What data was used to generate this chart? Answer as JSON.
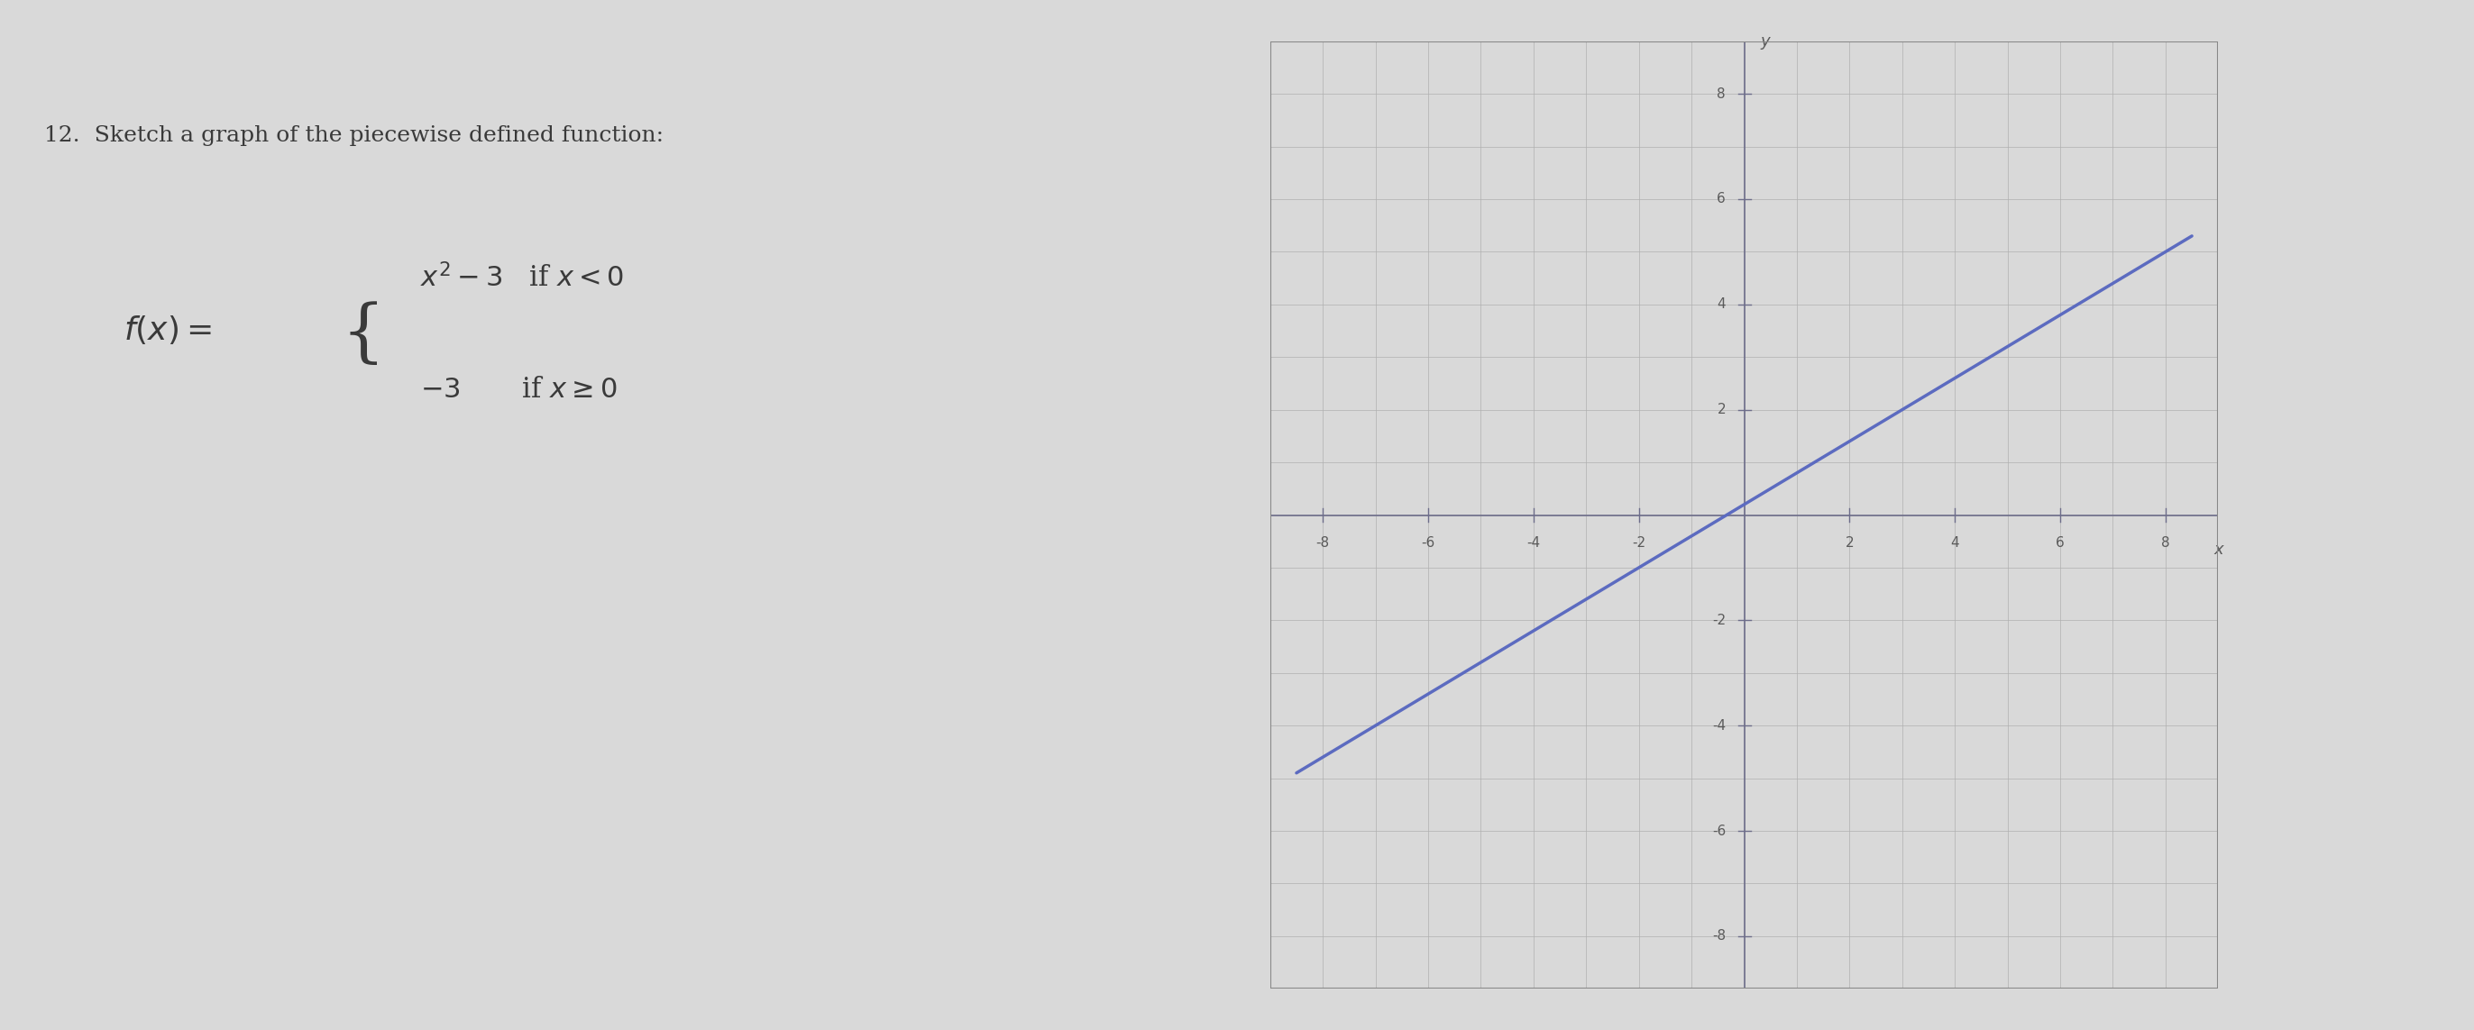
{
  "title": "12.  Sketch a graph of the piecewise defined function:",
  "formula_line1": "f(x) = { x² − 3   if x < 0",
  "formula_line2": "         {  −3      if x ≥ 0",
  "xlim": [
    -9,
    9
  ],
  "ylim": [
    -9,
    9
  ],
  "xticks": [
    -8,
    -6,
    -4,
    -2,
    2,
    4,
    6,
    8
  ],
  "yticks": [
    -8,
    -6,
    -4,
    -2,
    2,
    4,
    6,
    8
  ],
  "background_color": "#d9d9d9",
  "grid_color": "#b0b0b0",
  "axis_color": "#6d6d8a",
  "line_color": "#5c6bc0",
  "line_width": 2.5,
  "open_circle_color": "#5c6bc0",
  "closed_dot_color": "#5c6bc0",
  "x_label": "x",
  "y_label": "y",
  "label_color": "#5a5a5a",
  "label_fontsize": 13,
  "tick_fontsize": 11,
  "graph_bg": "#e8e8e8",
  "graph_box_color": "#888888"
}
